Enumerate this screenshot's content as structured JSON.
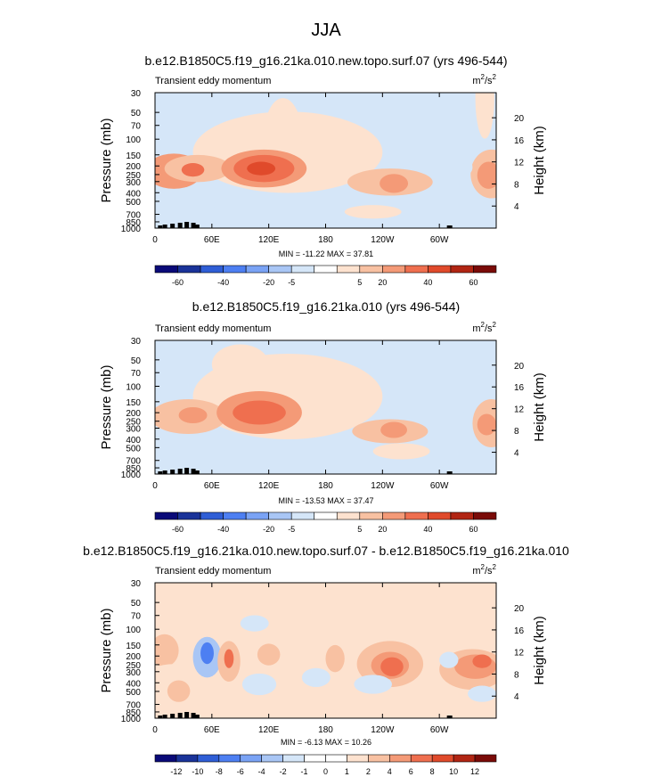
{
  "figure": {
    "title": "JJA"
  },
  "chart_data": [
    {
      "type": "heatmap",
      "panel": "model-a",
      "title": "b.e12.B1850C5.f19_g16.21ka.010.new.topo.surf.07 (yrs 496-544)",
      "variable": "Transient eddy momentum",
      "units_base": "m",
      "units_sup1": "2",
      "units_mid": "/s",
      "units_sup2": "2",
      "ylabel": "Pressure (mb)",
      "ylabel_right": "Height (km)",
      "x_ticks": [
        "0",
        "60E",
        "120E",
        "180",
        "120W",
        "60W"
      ],
      "y_ticks": [
        "30",
        "50",
        "70",
        "100",
        "150",
        "200",
        "250",
        "300",
        "400",
        "500",
        "700",
        "850",
        "1000"
      ],
      "height_ticks": [
        "20",
        "16",
        "12",
        "8",
        "4"
      ],
      "stats": "MIN = -11.22  MAX =  37.81",
      "min": -11.22,
      "max": 37.81,
      "colorbar_labels": [
        "-60",
        "-40",
        "-20",
        "-5",
        "5",
        "20",
        "40",
        "60"
      ],
      "blobs": [
        {
          "lon": 140,
          "lat": 0.44,
          "rx": 100,
          "ry": 0.3,
          "level": 1
        },
        {
          "lon": 135,
          "lat": 0.32,
          "rx": 20,
          "ry": 0.28,
          "level": 1
        },
        {
          "lon": 20,
          "lat": 0.58,
          "rx": 30,
          "ry": 0.13,
          "level": 3
        },
        {
          "lon": 45,
          "lat": 0.56,
          "rx": 35,
          "ry": 0.1,
          "level": 2
        },
        {
          "lon": 40,
          "lat": 0.57,
          "rx": 12,
          "ry": 0.05,
          "level": 4
        },
        {
          "lon": 115,
          "lat": 0.56,
          "rx": 45,
          "ry": 0.14,
          "level": 3
        },
        {
          "lon": 115,
          "lat": 0.56,
          "rx": 32,
          "ry": 0.1,
          "level": 4
        },
        {
          "lon": 112,
          "lat": 0.56,
          "rx": 15,
          "ry": 0.05,
          "level": 5
        },
        {
          "lon": 248,
          "lat": 0.66,
          "rx": 45,
          "ry": 0.1,
          "level": 2
        },
        {
          "lon": 252,
          "lat": 0.67,
          "rx": 15,
          "ry": 0.07,
          "level": 3
        },
        {
          "lon": 355,
          "lat": 0.6,
          "rx": 22,
          "ry": 0.18,
          "level": 2
        },
        {
          "lon": 352,
          "lat": 0.61,
          "rx": 12,
          "ry": 0.1,
          "level": 3
        },
        {
          "lon": 330,
          "lat": 0.55,
          "rx": 5,
          "ry": 0.05,
          "level": -1
        },
        {
          "lon": 67,
          "lat": 0.85,
          "rx": 5,
          "ry": 0.05,
          "level": -1
        },
        {
          "lon": 348,
          "lat": 0.04,
          "rx": 10,
          "ry": 0.3,
          "level": 1
        },
        {
          "lon": 230,
          "lat": 0.88,
          "rx": 30,
          "ry": 0.05,
          "level": 1
        }
      ]
    },
    {
      "type": "heatmap",
      "panel": "model-b",
      "title": "b.e12.B1850C5.f19_g16.21ka.010 (yrs 496-544)",
      "variable": "Transient eddy momentum",
      "units_base": "m",
      "units_sup1": "2",
      "units_mid": "/s",
      "units_sup2": "2",
      "ylabel": "Pressure (mb)",
      "ylabel_right": "Height (km)",
      "x_ticks": [
        "0",
        "60E",
        "120E",
        "180",
        "120W",
        "60W"
      ],
      "y_ticks": [
        "30",
        "50",
        "70",
        "100",
        "150",
        "200",
        "250",
        "300",
        "400",
        "500",
        "700",
        "850",
        "1000"
      ],
      "height_ticks": [
        "20",
        "16",
        "12",
        "8",
        "4"
      ],
      "stats": "MIN = -13.53  MAX =  37.47",
      "min": -13.53,
      "max": 37.47,
      "colorbar_labels": [
        "-60",
        "-40",
        "-20",
        "-5",
        "5",
        "20",
        "40",
        "60"
      ],
      "blobs": [
        {
          "lon": 140,
          "lat": 0.42,
          "rx": 100,
          "ry": 0.32,
          "level": 1
        },
        {
          "lon": 90,
          "lat": 0.18,
          "rx": 30,
          "ry": 0.15,
          "level": 1
        },
        {
          "lon": 35,
          "lat": 0.57,
          "rx": 40,
          "ry": 0.13,
          "level": 2
        },
        {
          "lon": 40,
          "lat": 0.56,
          "rx": 15,
          "ry": 0.06,
          "level": 3
        },
        {
          "lon": 110,
          "lat": 0.54,
          "rx": 45,
          "ry": 0.16,
          "level": 3
        },
        {
          "lon": 110,
          "lat": 0.54,
          "rx": 28,
          "ry": 0.09,
          "level": 4
        },
        {
          "lon": 248,
          "lat": 0.68,
          "rx": 40,
          "ry": 0.09,
          "level": 2
        },
        {
          "lon": 252,
          "lat": 0.67,
          "rx": 14,
          "ry": 0.06,
          "level": 3
        },
        {
          "lon": 355,
          "lat": 0.62,
          "rx": 20,
          "ry": 0.18,
          "level": 2
        },
        {
          "lon": 350,
          "lat": 0.63,
          "rx": 10,
          "ry": 0.08,
          "level": 3
        },
        {
          "lon": 330,
          "lat": 0.56,
          "rx": 5,
          "ry": 0.05,
          "level": -1
        },
        {
          "lon": 70,
          "lat": 0.88,
          "rx": 18,
          "ry": 0.06,
          "level": -1
        },
        {
          "lon": 260,
          "lat": 0.83,
          "rx": 30,
          "ry": 0.06,
          "level": 1
        }
      ]
    },
    {
      "type": "heatmap",
      "panel": "difference",
      "title": "b.e12.B1850C5.f19_g16.21ka.010.new.topo.surf.07 - b.e12.B1850C5.f19_g16.21ka.010",
      "variable": "Transient eddy momentum",
      "units_base": "m",
      "units_sup1": "2",
      "units_mid": "/s",
      "units_sup2": "2",
      "ylabel": "Pressure (mb)",
      "ylabel_right": "Height (km)",
      "x_ticks": [
        "0",
        "60E",
        "120E",
        "180",
        "120W",
        "60W"
      ],
      "y_ticks": [
        "30",
        "50",
        "70",
        "100",
        "150",
        "200",
        "250",
        "300",
        "400",
        "500",
        "700",
        "850",
        "1000"
      ],
      "height_ticks": [
        "20",
        "16",
        "12",
        "8",
        "4"
      ],
      "stats": "MIN = -6.13  MAX = 10.26",
      "min": -6.13,
      "max": 10.26,
      "colorbar_labels": [
        "-12",
        "-10",
        "-8",
        "-6",
        "-4",
        "-2",
        "-1",
        "0",
        "1",
        "2",
        "4",
        "6",
        "8",
        "10",
        "12"
      ],
      "blobs": [
        {
          "lon": 75,
          "lat": 0.22,
          "rx": 40,
          "ry": 0.18,
          "level": 1
        },
        {
          "lon": 200,
          "lat": 0.3,
          "rx": 40,
          "ry": 0.15,
          "level": 1
        },
        {
          "lon": 270,
          "lat": 0.25,
          "rx": 40,
          "ry": 0.2,
          "level": 1
        },
        {
          "lon": 10,
          "lat": 0.5,
          "rx": 15,
          "ry": 0.12,
          "level": 2
        },
        {
          "lon": 20,
          "lat": 0.7,
          "rx": 30,
          "ry": 0.1,
          "level": 1
        },
        {
          "lon": 55,
          "lat": 0.55,
          "rx": 15,
          "ry": 0.15,
          "level": -2
        },
        {
          "lon": 55,
          "lat": 0.52,
          "rx": 7,
          "ry": 0.08,
          "level": -4
        },
        {
          "lon": 78,
          "lat": 0.58,
          "rx": 12,
          "ry": 0.15,
          "level": 2
        },
        {
          "lon": 78,
          "lat": 0.56,
          "rx": 5,
          "ry": 0.07,
          "level": 4
        },
        {
          "lon": 25,
          "lat": 0.8,
          "rx": 12,
          "ry": 0.08,
          "level": 2
        },
        {
          "lon": 120,
          "lat": 0.53,
          "rx": 12,
          "ry": 0.08,
          "level": 2
        },
        {
          "lon": 190,
          "lat": 0.56,
          "rx": 10,
          "ry": 0.1,
          "level": 2
        },
        {
          "lon": 248,
          "lat": 0.6,
          "rx": 35,
          "ry": 0.17,
          "level": 2
        },
        {
          "lon": 248,
          "lat": 0.61,
          "rx": 20,
          "ry": 0.1,
          "level": 3
        },
        {
          "lon": 250,
          "lat": 0.62,
          "rx": 12,
          "ry": 0.07,
          "level": 4
        },
        {
          "lon": 335,
          "lat": 0.64,
          "rx": 35,
          "ry": 0.15,
          "level": 2
        },
        {
          "lon": 338,
          "lat": 0.62,
          "rx": 22,
          "ry": 0.09,
          "level": 3
        },
        {
          "lon": 345,
          "lat": 0.58,
          "rx": 10,
          "ry": 0.05,
          "level": 4
        },
        {
          "lon": 110,
          "lat": 0.75,
          "rx": 18,
          "ry": 0.08,
          "level": -1
        },
        {
          "lon": 170,
          "lat": 0.7,
          "rx": 15,
          "ry": 0.07,
          "level": -1
        },
        {
          "lon": 230,
          "lat": 0.75,
          "rx": 20,
          "ry": 0.07,
          "level": -1
        },
        {
          "lon": 310,
          "lat": 0.57,
          "rx": 10,
          "ry": 0.06,
          "level": -1
        },
        {
          "lon": 345,
          "lat": 0.82,
          "rx": 15,
          "ry": 0.06,
          "level": -1
        },
        {
          "lon": 105,
          "lat": 0.3,
          "rx": 15,
          "ry": 0.06,
          "level": -1
        }
      ]
    }
  ],
  "colors": {
    "abs_palette": [
      "#0a0a78",
      "#1a3399",
      "#2f5ed6",
      "#4d7ff2",
      "#7aa3f5",
      "#a9c6f5",
      "#d5e6f8",
      "#ffffff",
      "#fde2cf",
      "#f8c1a2",
      "#f49a77",
      "#ef6f4f",
      "#e04a2b",
      "#b12513",
      "#7a0b08"
    ],
    "diff_palette": [
      "#0a0a78",
      "#1a3399",
      "#2f5ed6",
      "#4d7ff2",
      "#7aa3f5",
      "#a9c6f5",
      "#d5e6f8",
      "#ffffff",
      "#ffffff",
      "#fde2cf",
      "#f8c1a2",
      "#f49a77",
      "#ef6f4f",
      "#e04a2b",
      "#b12513",
      "#7a0b08"
    ],
    "background_abs": "#d5e6f8",
    "background_diff": "#fde2cf",
    "topography": "#000000"
  }
}
